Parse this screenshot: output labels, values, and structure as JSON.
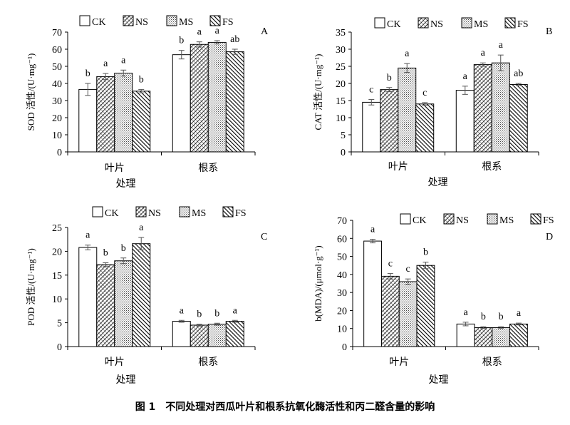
{
  "figure": {
    "caption_number": "图 1",
    "caption_text": "不同处理对西瓜叶片和根系抗氧化酶活性和丙二醛含量的影响"
  },
  "legend_labels": [
    "CK",
    "NS",
    "MS",
    "FS"
  ],
  "chart_data": [
    {
      "type": "bar",
      "panel_label": "A",
      "categories": [
        "叶片",
        "根系"
      ],
      "xlabel": "处理",
      "ylabel": "SOD 活性/(U·mg⁻¹)",
      "ylim": [
        0,
        70
      ],
      "yticks": [
        0,
        10,
        20,
        30,
        40,
        50,
        60,
        70
      ],
      "legend": "top-left",
      "grid": false,
      "series": [
        {
          "name": "CK",
          "values": [
            36.5,
            56.8
          ],
          "errors": [
            3.5,
            2.5
          ],
          "letters": [
            "b",
            "b"
          ]
        },
        {
          "name": "NS",
          "values": [
            44.0,
            62.8
          ],
          "errors": [
            1.8,
            1.5
          ],
          "letters": [
            "a",
            "a"
          ]
        },
        {
          "name": "MS",
          "values": [
            46.0,
            64.0
          ],
          "errors": [
            1.8,
            1.0
          ],
          "letters": [
            "a",
            "a"
          ]
        },
        {
          "name": "FS",
          "values": [
            35.5,
            58.5
          ],
          "errors": [
            1.0,
            1.5
          ],
          "letters": [
            "b",
            "ab"
          ]
        }
      ]
    },
    {
      "type": "bar",
      "panel_label": "B",
      "categories": [
        "叶片",
        "根系"
      ],
      "xlabel": "处理",
      "ylabel": "CAT 活性/(U·mg⁻¹)",
      "ylim": [
        0,
        35
      ],
      "yticks": [
        0,
        5,
        10,
        15,
        20,
        25,
        30,
        35
      ],
      "legend": "top-left",
      "grid": false,
      "series": [
        {
          "name": "CK",
          "values": [
            14.5,
            18.0
          ],
          "errors": [
            0.8,
            1.2
          ],
          "letters": [
            "c",
            "a"
          ]
        },
        {
          "name": "NS",
          "values": [
            18.2,
            25.5
          ],
          "errors": [
            0.6,
            0.5
          ],
          "letters": [
            "b",
            "a"
          ]
        },
        {
          "name": "MS",
          "values": [
            24.5,
            26.0
          ],
          "errors": [
            1.3,
            2.3
          ],
          "letters": [
            "a",
            "a"
          ]
        },
        {
          "name": "FS",
          "values": [
            14.0,
            19.7
          ],
          "errors": [
            0.4,
            0.3
          ],
          "letters": [
            "c",
            "ab"
          ]
        }
      ]
    },
    {
      "type": "bar",
      "panel_label": "C",
      "categories": [
        "叶片",
        "根系"
      ],
      "xlabel": "处理",
      "ylabel": "POD 活性/(U·mg⁻¹)",
      "ylim": [
        0,
        25
      ],
      "yticks": [
        0,
        5,
        10,
        15,
        20,
        25
      ],
      "legend": "top-left",
      "grid": false,
      "series": [
        {
          "name": "CK",
          "values": [
            20.8,
            5.3
          ],
          "errors": [
            0.5,
            0.2
          ],
          "letters": [
            "a",
            "a"
          ]
        },
        {
          "name": "NS",
          "values": [
            17.2,
            4.5
          ],
          "errors": [
            0.4,
            0.2
          ],
          "letters": [
            "b",
            "b"
          ]
        },
        {
          "name": "MS",
          "values": [
            18.0,
            4.7
          ],
          "errors": [
            0.6,
            0.2
          ],
          "letters": [
            "b",
            "b"
          ]
        },
        {
          "name": "FS",
          "values": [
            21.6,
            5.3
          ],
          "errors": [
            1.3,
            0.2
          ],
          "letters": [
            "a",
            "a"
          ]
        }
      ]
    },
    {
      "type": "bar",
      "panel_label": "D",
      "categories": [
        "叶片",
        "根系"
      ],
      "xlabel": "处理",
      "ylabel": "b(MDA)/(μmol·g⁻¹)",
      "ylim": [
        0,
        70
      ],
      "yticks": [
        0,
        10,
        20,
        30,
        40,
        50,
        60,
        70
      ],
      "legend": "top-left",
      "grid": false,
      "series": [
        {
          "name": "CK",
          "values": [
            58.5,
            12.5
          ],
          "errors": [
            1.0,
            1.0
          ],
          "letters": [
            "a",
            "a"
          ]
        },
        {
          "name": "NS",
          "values": [
            39.0,
            10.5
          ],
          "errors": [
            1.5,
            0.5
          ],
          "letters": [
            "c",
            "b"
          ]
        },
        {
          "name": "MS",
          "values": [
            36.0,
            10.5
          ],
          "errors": [
            1.5,
            0.5
          ],
          "letters": [
            "c",
            "b"
          ]
        },
        {
          "name": "FS",
          "values": [
            45.0,
            12.5
          ],
          "errors": [
            1.8,
            0.5
          ],
          "letters": [
            "b",
            "a"
          ]
        }
      ]
    }
  ]
}
